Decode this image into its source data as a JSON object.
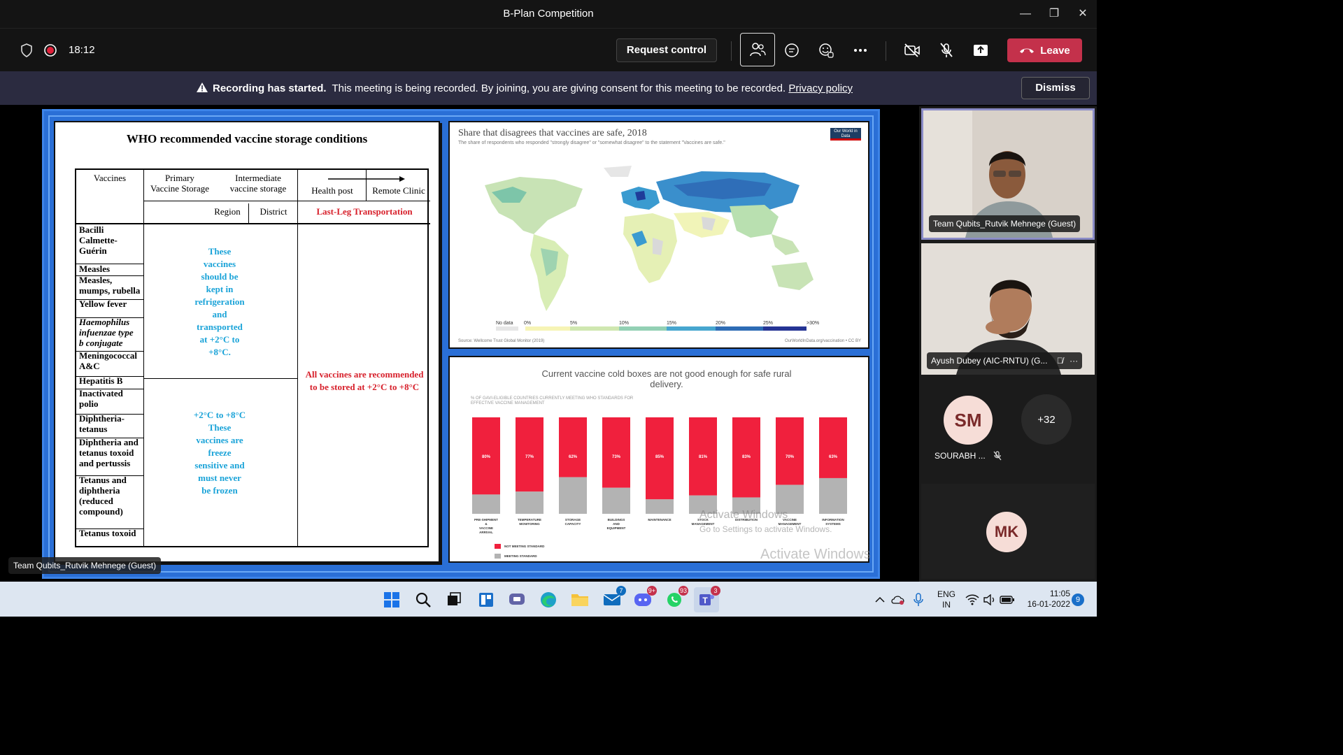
{
  "window": {
    "title": "B-Plan Competition",
    "minimize": "—",
    "restore": "❐",
    "close": "✕"
  },
  "toolbar": {
    "timer": "18:12",
    "request_control": "Request control",
    "leave": "Leave"
  },
  "banner": {
    "bold": "Recording has started.",
    "text": "This meeting is being recorded. By joining, you are giving consent for this meeting to be recorded.",
    "link": "Privacy policy",
    "dismiss": "Dismiss"
  },
  "slide": {
    "table": {
      "title": "WHO recommended vaccine storage conditions",
      "h_vaccines": "Vaccines",
      "h_primary": "Primary\nVaccine Storage",
      "h_intermediate": "Intermediate\nvaccine storage",
      "h_health_post": "Health post",
      "h_remote_clinic": "Remote Clinic",
      "h_region": "Region",
      "h_district": "District",
      "h_last_leg": "Last-Leg Transportation",
      "vaccines": [
        "Bacilli\nCalmette-\nGuérin",
        "Measles",
        "Measles,\nmumps, rubella",
        "Yellow fever",
        "Haemophilus\ninfuenzae type\nb conjugate",
        "Meningococcal\nA&C",
        "Hepatitis B",
        "Inactivated\npolio",
        "Diphtheria-\ntetanus",
        "Diphtheria and\ntetanus toxoid\nand pertussis",
        "Tetanus and\ndiphtheria\n(reduced\ncompound)",
        "Tetanus toxoid"
      ],
      "blue_top": "These\nvaccines\nshould be\nkept in\nrefrigeration\nand\ntransported\nat +2°C to\n+8°C.",
      "blue_bottom": "+2°C to +8°C\nThese\nvaccines are\nfreeze\nsensitive and\nmust never\nbe frozen",
      "red_note": "All vaccines are recommended\nto be stored at +2°C to +8°C"
    },
    "map": {
      "title": "Share that disagrees that vaccines are safe, 2018",
      "subtitle": "The share of respondents who responded \"strongly disagree\" or \"somewhat disagree\" to the statement \"Vaccines are safe.\"",
      "logo": "Our World in Data",
      "legend": [
        "No data",
        "0%",
        "5%",
        "10%",
        "15%",
        "20%",
        "25%",
        ">30%"
      ],
      "source": "Source: Wellcome Trust Global Monitor (2019)",
      "credit": "OurWorldInData.org/vaccination • CC BY"
    },
    "activate": {
      "line1": "Activate Windows",
      "line2": "Go to Settings to activate Windows.",
      "line3": "Activate Windows"
    }
  },
  "chart_data": {
    "type": "bar",
    "title": "Current vaccine cold boxes are not good enough for safe rural delivery.",
    "subtitle": "% OF GAVI-ELIGIBLE COUNTRIES CURRENTLY MEETING WHO STANDARDS FOR EFFECTIVE VACCINE MANAGEMENT",
    "categories": [
      "PRE-SHIPMENT & VACCINE ARRIVAL",
      "TEMPERATURE MONITORING",
      "STORAGE CAPACITY",
      "BUILDINGS AND EQUIPMENT",
      "MAINTENANCE",
      "STOCK MANAGEMENT",
      "DISTRIBUTION",
      "VACCINE MANAGEMENT",
      "INFORMATION SYSTEMS"
    ],
    "series": [
      {
        "name": "NOT MEETING STANDARD",
        "values": [
          80,
          77,
          62,
          73,
          85,
          81,
          83,
          70,
          63
        ],
        "labels": [
          "80%",
          "77%",
          "62%",
          "73%",
          "85%",
          "81%",
          "83%",
          "70%",
          "63%"
        ],
        "color": "#f0203d"
      },
      {
        "name": "MEETING STANDARD",
        "values": [
          20,
          23,
          38,
          27,
          15,
          19,
          17,
          30,
          37
        ],
        "color": "#b3b3b3"
      }
    ],
    "ylim": [
      0,
      100
    ]
  },
  "presenter_label": "Team Qubits_Rutvik Mehnege (Guest)",
  "participants": [
    {
      "name": "Team Qubits_Rutvik Mehnege (Guest)"
    },
    {
      "name": "Ayush Dubey (AIC-RNTU) (G..."
    },
    {
      "initials": "SM",
      "name": "SOURABH ..."
    },
    {
      "overflow": "+32"
    },
    {
      "initials": "MK"
    }
  ],
  "taskbar": {
    "badges": {
      "outlook": "7",
      "discord": "9+",
      "whatsapp": "93",
      "teams": "3"
    },
    "lang1": "ENG",
    "lang2": "IN",
    "time": "11:05",
    "date": "16-01-2022",
    "notif": "9"
  },
  "colors": {
    "leave": "#c4314b",
    "banner": "#2b2b40",
    "slide_bg": "#2a6fd6",
    "bar_red": "#f0203d",
    "bar_gray": "#b3b3b3"
  }
}
